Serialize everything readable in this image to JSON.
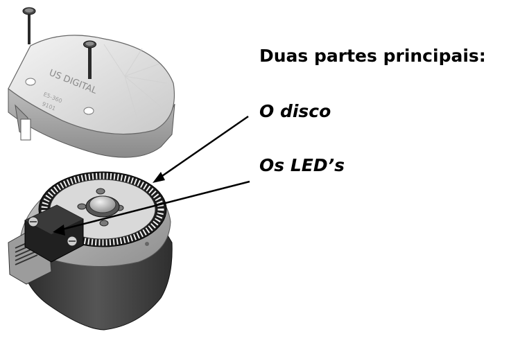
{
  "heading": "Duas partes principais:",
  "parts": {
    "disc": "O disco",
    "leds": "Os LED’s"
  },
  "cover": {
    "brand": "US DIGITAL",
    "model": "E5-360",
    "serial": "9101"
  },
  "colors": {
    "background": "#ffffff",
    "text": "#000000",
    "metal_light": "#e4e4e4",
    "metal_dark": "#3a3a3a"
  }
}
